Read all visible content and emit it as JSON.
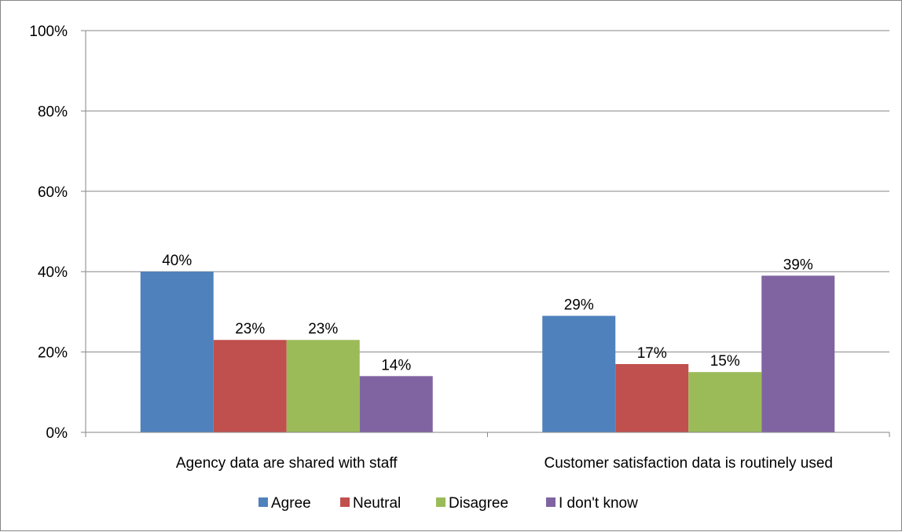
{
  "chart_data": {
    "type": "bar",
    "categories": [
      "Agency data are shared with staff",
      "Customer satisfaction data is routinely used"
    ],
    "series": [
      {
        "name": "Agree",
        "values": [
          40,
          29
        ],
        "color": "#4F81BD"
      },
      {
        "name": "Neutral",
        "values": [
          23,
          17
        ],
        "color": "#C0504D"
      },
      {
        "name": "Disagree",
        "values": [
          23,
          15
        ],
        "color": "#9BBB59"
      },
      {
        "name": "I don't know",
        "values": [
          14,
          39
        ],
        "color": "#8064A2"
      }
    ],
    "value_unit": "%",
    "ylim": [
      0,
      100
    ],
    "yticks": [
      "0%",
      "20%",
      "40%",
      "60%",
      "80%",
      "100%"
    ],
    "grid": true,
    "legend_position": "bottom",
    "title": "",
    "xlabel": "",
    "ylabel": ""
  }
}
